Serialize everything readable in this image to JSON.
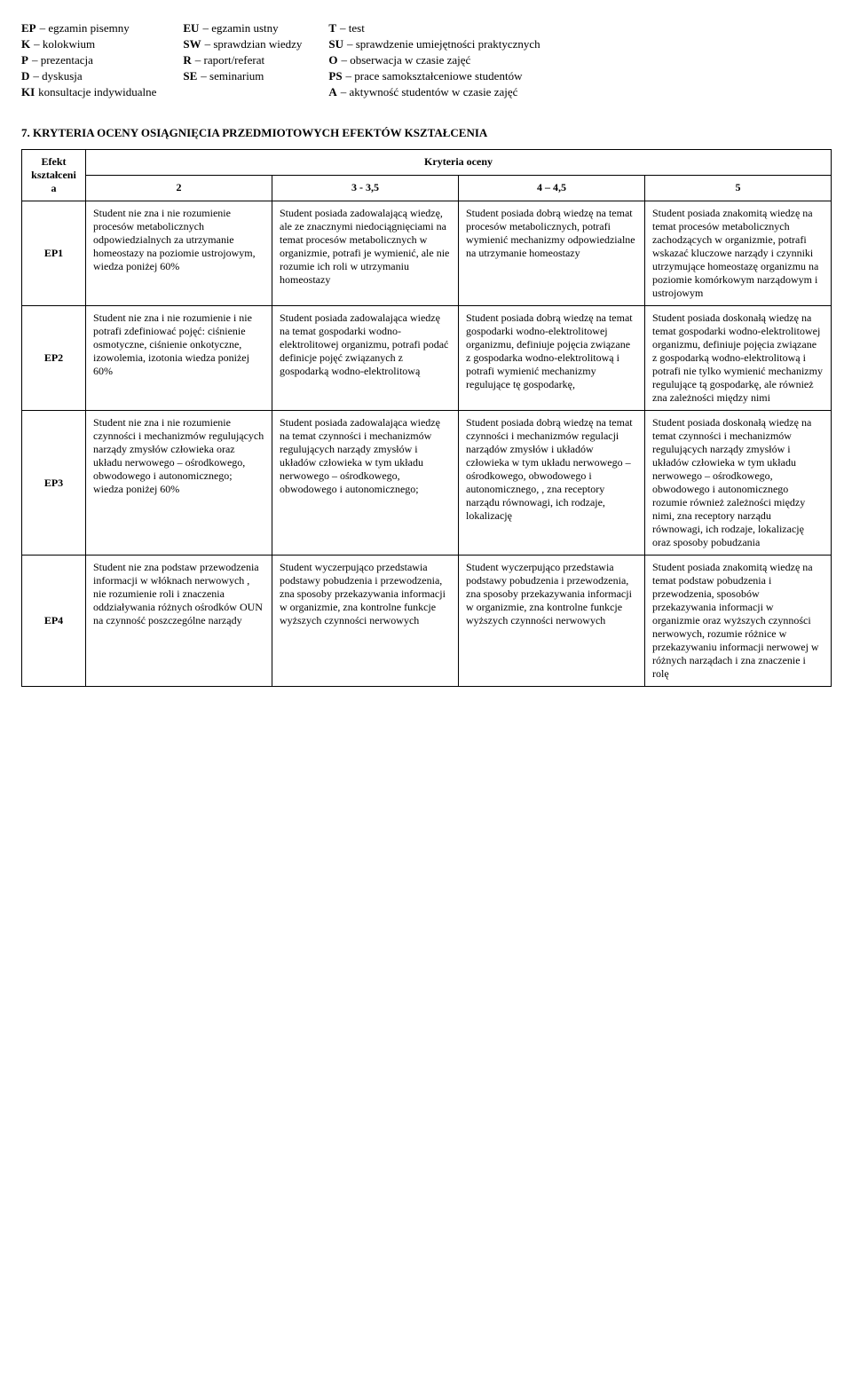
{
  "legend": {
    "cols": [
      [
        {
          "code": "EP",
          "text": "– egzamin pisemny"
        },
        {
          "code": "K",
          "text": "– kolokwium"
        },
        {
          "code": "P",
          "text": "– prezentacja"
        },
        {
          "code": "D",
          "text": "– dyskusja"
        },
        {
          "code": "KI",
          "text": " konsultacje indywidualne"
        }
      ],
      [
        {
          "code": "EU",
          "text": "– egzamin ustny"
        },
        {
          "code": "SW",
          "text": "– sprawdzian wiedzy"
        },
        {
          "code": "R",
          "text": "– raport/referat"
        },
        {
          "code": "SE",
          "text": "– seminarium"
        }
      ],
      [
        {
          "code": "T",
          "text": "– test"
        },
        {
          "code": "SU",
          "text": "– sprawdzenie umiejętności praktycznych"
        },
        {
          "code": "O",
          "text": "– obserwacja w czasie zajęć"
        },
        {
          "code": "PS",
          "text": "– prace samokształceniowe studentów"
        },
        {
          "code": "A",
          "text": "– aktywność studentów w czasie zajęć"
        }
      ]
    ]
  },
  "section_title": "7. KRYTERIA OCENY OSIĄGNIĘCIA PRZEDMIOTOWYCH EFEKTÓW KSZTAŁCENIA",
  "table": {
    "efekt_header": "Efekt kształceni a",
    "kryteria_header": "Kryteria oceny",
    "grade_headers": [
      "2",
      "3 - 3,5",
      "4 – 4,5",
      "5"
    ],
    "col_widths": [
      "72px",
      "210px",
      "210px",
      "210px",
      "210px"
    ],
    "rows": [
      {
        "ep": "EP1",
        "c1": "Student nie  zna i nie rozumienie procesów metabolicznych odpowiedzialnych za utrzymanie homeostazy na poziomie ustrojowym, wiedza poniżej 60%",
        "c2": "Student posiada zadowalającą wiedzę, ale ze znacznymi niedociągnięciami na temat procesów metabolicznych w organizmie, potrafi je wymienić, ale nie rozumie ich roli w utrzymaniu homeostazy",
        "c3": "Student posiada  dobrą wiedzę na temat procesów metabolicznych, potrafi wymienić mechanizmy odpowiedzialne na utrzymanie homeostazy",
        "c4": "Student posiada znakomitą wiedzę na temat procesów metabolicznych zachodzących w organizmie, potrafi wskazać kluczowe narządy i czynniki utrzymujące homeostazę organizmu na poziomie komórkowym narządowym i ustrojowym"
      },
      {
        "ep": "EP2",
        "c1": "Student nie  zna i nie rozumienie i nie potrafi zdefiniować pojęć: ciśnienie osmotyczne, ciśnienie onkotyczne, izowolemia, izotonia   wiedza poniżej 60%",
        "c2": "Student posiada zadowalająca wiedzę na temat gospodarki wodno-elektrolitowej organizmu, potrafi podać definicje pojęć związanych z gospodarką wodno-elektrolitową",
        "c3": "Student posiada dobrą wiedzę  na temat gospodarki wodno-elektrolitowej organizmu, definiuje pojęcia związane z gospodarka wodno-elektrolitową i potrafi wymienić mechanizmy regulujące  tę gospodarkę,",
        "c4": "Student posiada doskonałą wiedzę na temat gospodarki wodno-elektrolitowej organizmu, definiuje pojęcia związane z gospodarką wodno-elektrolitową i potrafi nie tylko wymienić mechanizmy regulujące tą gospodarkę, ale również zna zależności między nimi"
      },
      {
        "ep": "EP3",
        "c1": "Student nie  zna i nie rozumienie czynności i mechanizmów regulujących narządy zmysłów człowieka oraz układu nerwowego – ośrodkowego, obwodowego i autonomicznego; wiedza poniżej 60%",
        "c2": "Student posiada zadowalająca wiedzę na temat czynności i mechanizmów regulujących narządy zmysłów i układów człowieka w tym układu nerwowego – ośrodkowego, obwodowego i autonomicznego;",
        "c3": "Student posiada dobrą wiedzę na temat czynności i mechanizmów regulacji narządów zmysłów i układów człowieka w tym układu nerwowego – ośrodkowego, obwodowego i autonomicznego, , zna receptory narządu równowagi, ich rodzaje, lokalizację",
        "c4": "Student posiada doskonałą wiedzę na temat czynności i mechanizmów regulujących narządy zmysłów i układów człowieka w tym układu nerwowego – ośrodkowego, obwodowego i autonomicznego rozumie również zależności między nimi, zna receptory narządu równowagi, ich rodzaje, lokalizację oraz  sposoby pobudzania"
      },
      {
        "ep": "EP4",
        "c1": "Student nie  zna podstaw przewodzenia informacji w włóknach nerwowych , nie rozumienie roli i znaczenia oddziaływania różnych ośrodków OUN na czynność poszczególne narządy",
        "c2": "Student wyczerpująco przedstawia podstawy pobudzenia i przewodzenia, zna sposoby przekazywania informacji w organizmie, zna kontrolne funkcje wyższych czynności nerwowych",
        "c3": "Student wyczerpująco przedstawia podstawy pobudzenia i przewodzenia, zna sposoby przekazywania informacji w organizmie, zna kontrolne funkcje wyższych czynności nerwowych",
        "c4": "Student posiada znakomitą  wiedzę na temat podstaw pobudzenia i przewodzenia, sposobów przekazywania informacji w organizmie oraz wyższych czynności nerwowych, rozumie różnice w przekazywaniu informacji nerwowej w różnych narządach i zna znaczenie i rolę"
      }
    ]
  }
}
